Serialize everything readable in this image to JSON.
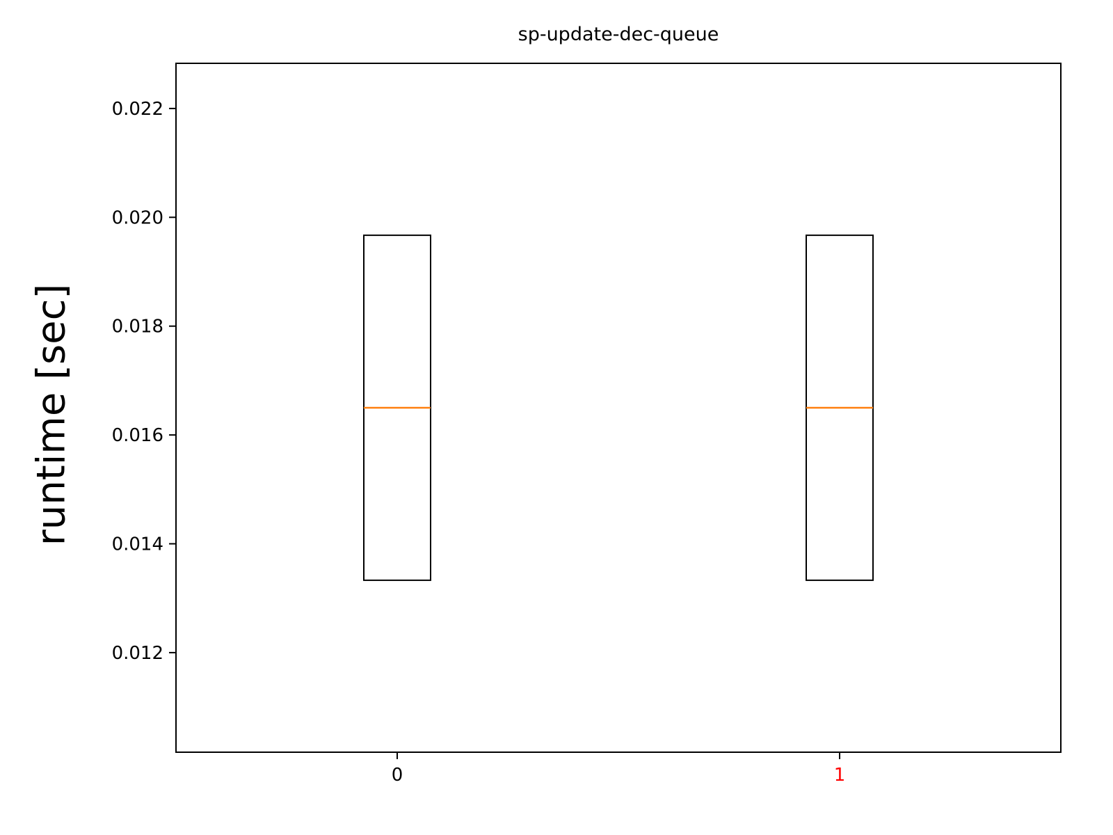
{
  "chart_data": {
    "type": "box",
    "title": "sp-update-dec-queue",
    "xlabel": "",
    "ylabel": "runtime [sec]",
    "categories": [
      "0",
      "1"
    ],
    "category_label_colors": [
      "#000000",
      "#ff0000"
    ],
    "boxes": [
      {
        "category": "0",
        "q1": 0.01333,
        "median": 0.0165,
        "q3": 0.01967,
        "whisker_low": 0.01333,
        "whisker_high": 0.01967
      },
      {
        "category": "1",
        "q1": 0.01333,
        "median": 0.0165,
        "q3": 0.01967,
        "whisker_low": 0.01333,
        "whisker_high": 0.01967
      }
    ],
    "ylim": [
      0.01017,
      0.02283
    ],
    "yticks": [
      0.012,
      0.014,
      0.016,
      0.018,
      0.02,
      0.022
    ],
    "ytick_labels": [
      "0.012",
      "0.014",
      "0.016",
      "0.018",
      "0.020",
      "0.022"
    ],
    "xlim": [
      -0.5,
      1.5
    ],
    "grid": false,
    "colors": {
      "box": "#000000",
      "median": "#ff7f0e",
      "axes": "#000000"
    }
  }
}
